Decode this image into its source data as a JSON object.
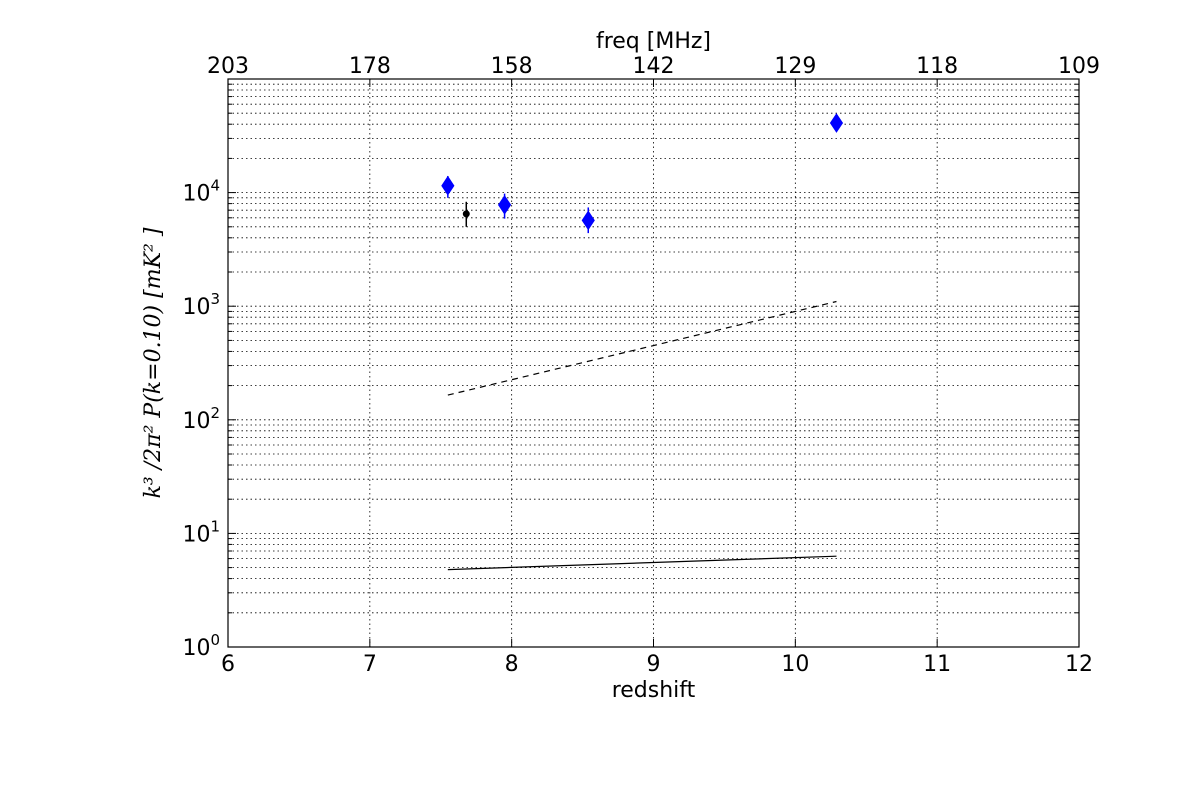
{
  "chart_data": {
    "type": "scatter",
    "xlabel": "redshift",
    "ylabel": "k³ /2π² P(k=0.10)   [mK² ]",
    "top_xlabel": "freq [MHz]",
    "xlim": [
      6,
      12
    ],
    "ylim": [
      1,
      100000
    ],
    "yscale": "log",
    "grid": true,
    "x_ticks": [
      {
        "value": 6,
        "label": "6"
      },
      {
        "value": 7,
        "label": "7"
      },
      {
        "value": 8,
        "label": "8"
      },
      {
        "value": 9,
        "label": "9"
      },
      {
        "value": 10,
        "label": "10"
      },
      {
        "value": 11,
        "label": "11"
      },
      {
        "value": 12,
        "label": "12"
      }
    ],
    "top_ticks": [
      {
        "value": 6,
        "label": "203"
      },
      {
        "value": 7,
        "label": "178"
      },
      {
        "value": 8,
        "label": "158"
      },
      {
        "value": 9,
        "label": "142"
      },
      {
        "value": 10,
        "label": "129"
      },
      {
        "value": 11,
        "label": "118"
      },
      {
        "value": 12,
        "label": "109"
      }
    ],
    "y_ticks": [
      {
        "value": 1,
        "base": "10",
        "exp": "0"
      },
      {
        "value": 10,
        "base": "10",
        "exp": "1"
      },
      {
        "value": 100,
        "base": "10",
        "exp": "2"
      },
      {
        "value": 1000,
        "base": "10",
        "exp": "3"
      },
      {
        "value": 10000,
        "base": "10",
        "exp": "4"
      }
    ],
    "series": [
      {
        "marker": "diamond",
        "color": "#0000ff",
        "points": [
          {
            "x": 7.55,
            "y": 11500,
            "ylow": 9000,
            "yhigh": 14000
          },
          {
            "x": 7.95,
            "y": 7800,
            "ylow": 5900,
            "yhigh": 9800
          },
          {
            "x": 8.54,
            "y": 5700,
            "ylow": 4400,
            "yhigh": 7400
          },
          {
            "x": 10.29,
            "y": 41000,
            "ylow": 35000,
            "yhigh": 47000
          }
        ]
      },
      {
        "marker": "circle",
        "color": "#000000",
        "points": [
          {
            "x": 7.68,
            "y": 6500,
            "ylow": 5000,
            "yhigh": 8300
          }
        ]
      }
    ],
    "lines": [
      {
        "style": "dashed",
        "color": "#000000",
        "x": [
          7.55,
          10.29
        ],
        "y": [
          165,
          1100
        ]
      },
      {
        "style": "solid",
        "color": "#000000",
        "x": [
          7.55,
          10.29
        ],
        "y": [
          4.8,
          6.3
        ]
      }
    ]
  }
}
